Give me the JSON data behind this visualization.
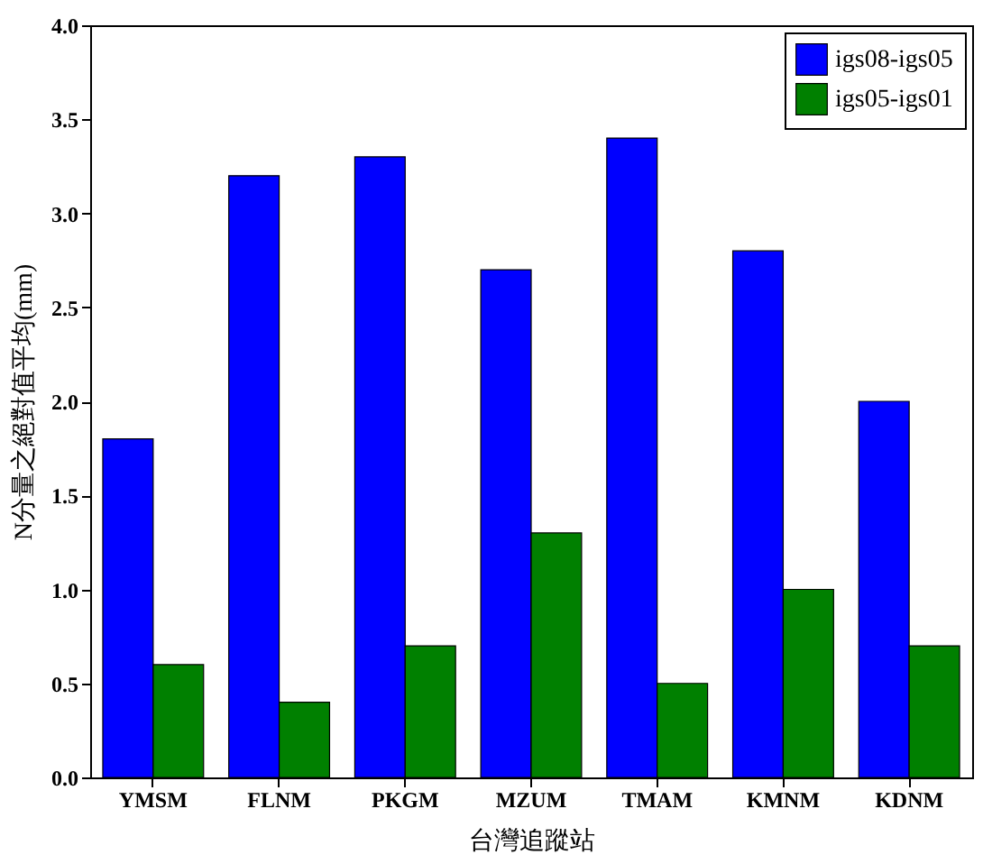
{
  "chart_data": {
    "type": "bar",
    "xlabel": "台灣追蹤站",
    "ylabel": "N分量之絕對值平均(mm)",
    "categories": [
      "YMSM",
      "FLNM",
      "PKGM",
      "MZUM",
      "TMAM",
      "KMNM",
      "KDNM"
    ],
    "series": [
      {
        "name": "igs08-igs05",
        "color": "#0000ff",
        "values": [
          1.8,
          3.2,
          3.3,
          2.7,
          3.4,
          2.8,
          2.0
        ]
      },
      {
        "name": "igs05-igs01",
        "color": "#008000",
        "values": [
          0.6,
          0.4,
          0.7,
          1.3,
          0.5,
          1.0,
          0.7
        ]
      }
    ],
    "ylim": [
      0,
      4
    ],
    "yticks": [
      {
        "value": 0,
        "label": "0.0"
      },
      0.5,
      {
        "value": 1,
        "label": "1.0"
      },
      1.5,
      {
        "value": 2,
        "label": "2.0"
      },
      2.5,
      {
        "value": 3,
        "label": "3.0"
      },
      3.5,
      {
        "value": 4,
        "label": "4.0"
      }
    ],
    "legend": "top right",
    "grid": false
  }
}
